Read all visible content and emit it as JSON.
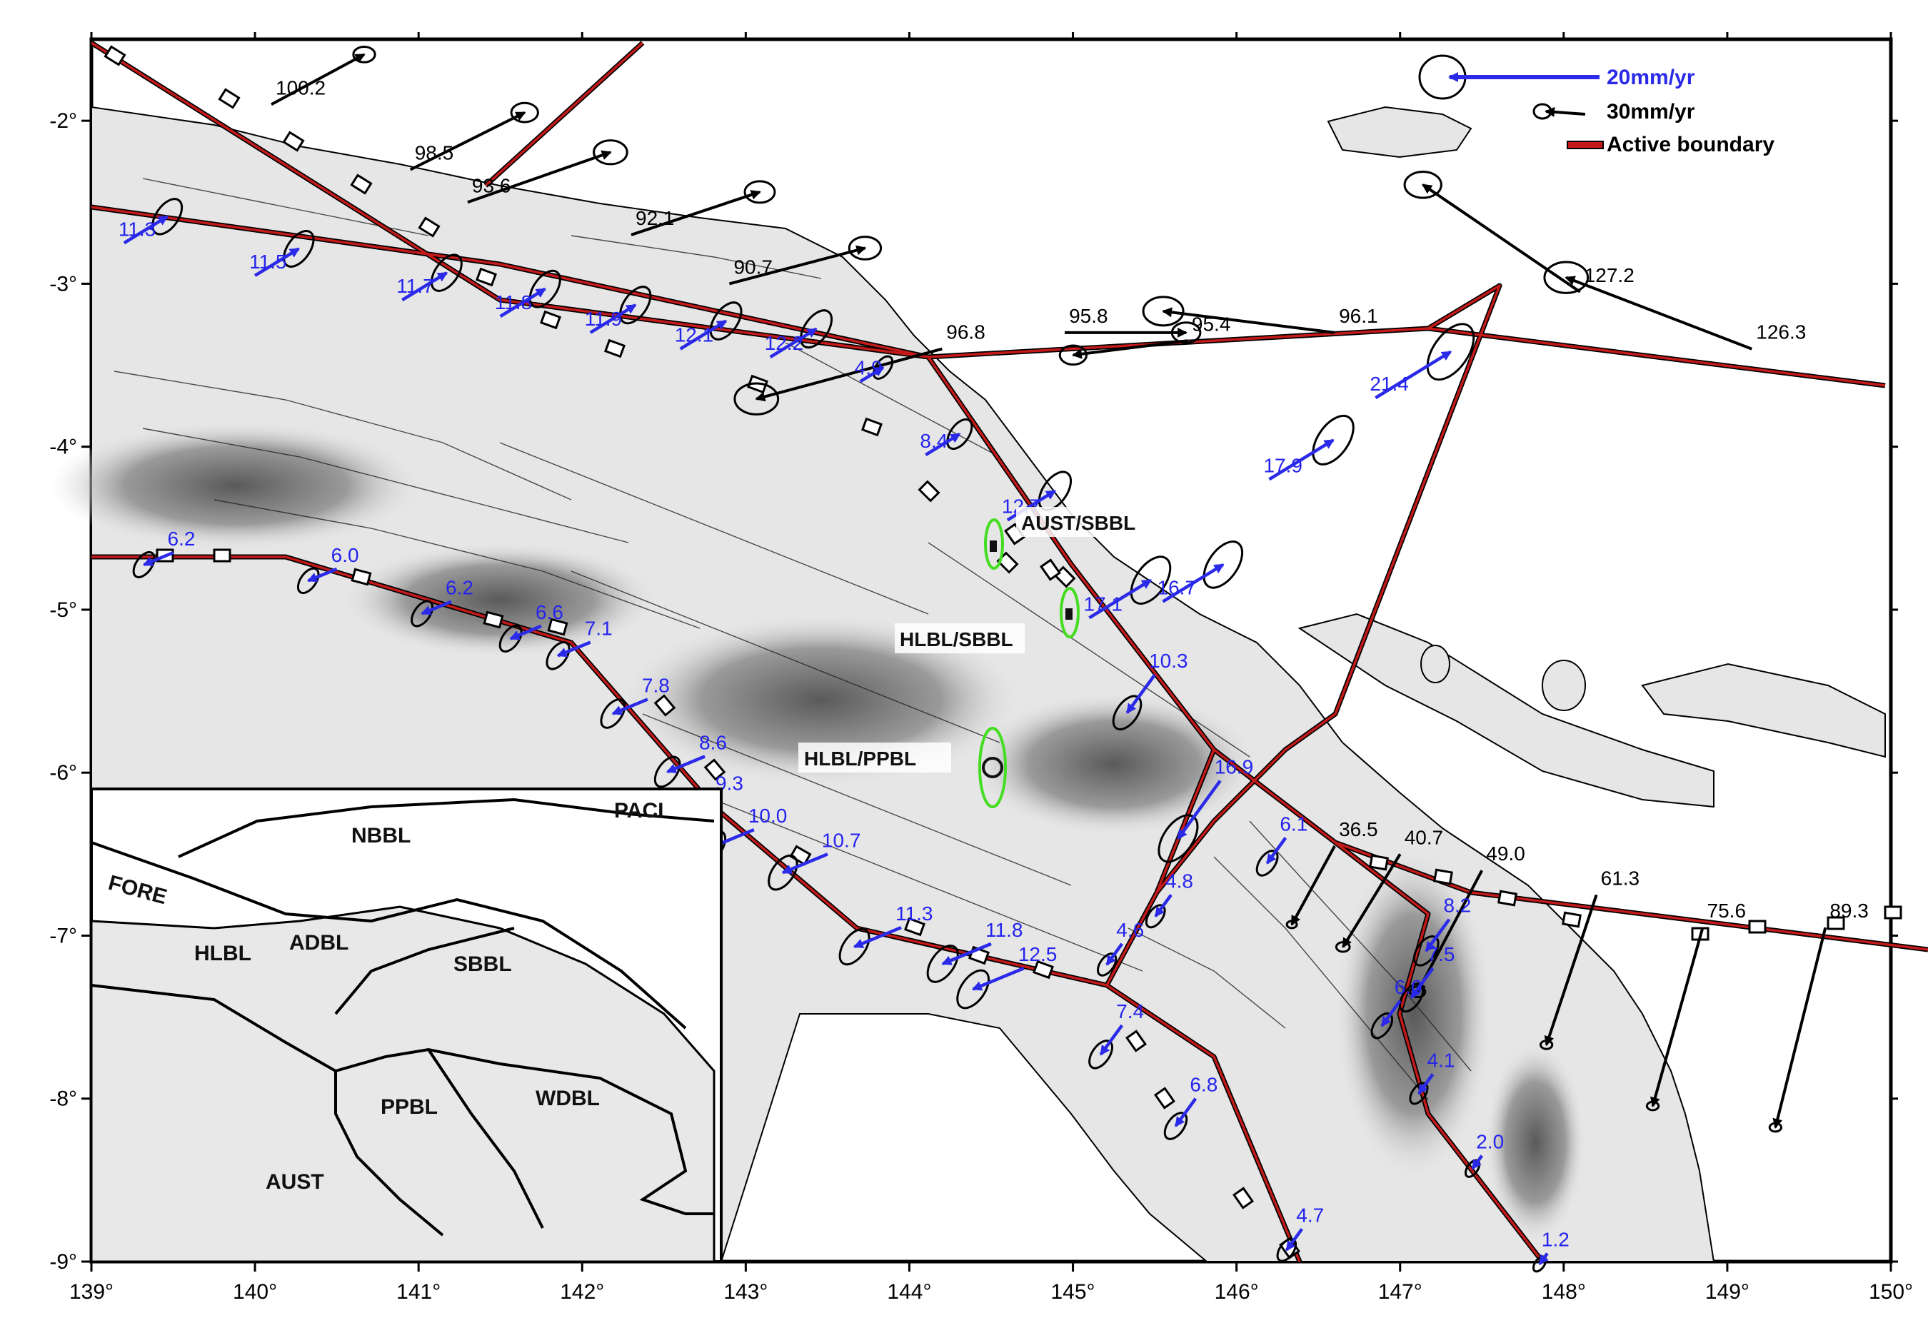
{
  "axes": {
    "lon_ticks": [
      "139°",
      "140°",
      "141°",
      "142°",
      "143°",
      "144°",
      "145°",
      "146°",
      "147°",
      "148°",
      "149°",
      "150°"
    ],
    "lat_ticks": [
      "-2°",
      "-3°",
      "-4°",
      "-5°",
      "-6°",
      "-7°",
      "-8°",
      "-9°"
    ],
    "lon_range": [
      139,
      150
    ],
    "lat_range": [
      -9,
      -1.5
    ]
  },
  "legend": {
    "blue_scale": "20mm/yr",
    "black_scale": "30mm/yr",
    "boundary": "Active boundary",
    "blue_color": "#2a2ae8",
    "black_color": "#000000",
    "boundary_color": "#cc1111"
  },
  "colors": {
    "blue_vector": "#2a2ae8",
    "black_vector": "#000000",
    "boundary": "#c41a1a",
    "green_ellipse": "#44dd22",
    "land": "#e8e8e8",
    "highland": "#8a8a8a"
  },
  "map_labels": {
    "aust_sbbl": "AUST/SBBL",
    "hlbl_sbbl": "HLBL/SBBL",
    "hlbl_ppbl": "HLBL/PPBL"
  },
  "inset_labels": {
    "nbbl": "NBBL",
    "paci": "PACI",
    "fore": "FORE",
    "hlbl": "HLBL",
    "adbl": "ADBL",
    "sbbl": "SBBL",
    "ppbl": "PPBL",
    "wdbl": "WDBL",
    "aust": "AUST"
  },
  "black_vectors": [
    {
      "label": "100.2",
      "lon": 140.1,
      "lat": -1.9
    },
    {
      "label": "98.5",
      "lon": 140.95,
      "lat": -2.3
    },
    {
      "label": "93.6",
      "lon": 141.3,
      "lat": -2.5
    },
    {
      "label": "92.1",
      "lon": 142.3,
      "lat": -2.7
    },
    {
      "label": "90.7",
      "lon": 142.9,
      "lat": -3.0
    },
    {
      "label": "96.8",
      "lon": 144.2,
      "lat": -3.4
    },
    {
      "label": "95.8",
      "lon": 144.95,
      "lat": -3.3
    },
    {
      "label": "95.4",
      "lon": 145.7,
      "lat": -3.35
    },
    {
      "label": "96.1",
      "lon": 146.6,
      "lat": -3.3
    },
    {
      "label": "127.2",
      "lon": 148.1,
      "lat": -3.05
    },
    {
      "label": "126.3",
      "lon": 149.15,
      "lat": -3.4
    },
    {
      "label": "36.5",
      "lon": 146.6,
      "lat": -6.45
    },
    {
      "label": "40.7",
      "lon": 147.0,
      "lat": -6.5
    },
    {
      "label": "49.0",
      "lon": 147.5,
      "lat": -6.6
    },
    {
      "label": "61.3",
      "lon": 148.2,
      "lat": -6.75
    },
    {
      "label": "75.6",
      "lon": 148.85,
      "lat": -6.95
    },
    {
      "label": "89.3",
      "lon": 149.6,
      "lat": -6.95
    }
  ],
  "blue_vectors": [
    {
      "label": "11.3",
      "lon": 139.2,
      "lat": -2.75
    },
    {
      "label": "11.5",
      "lon": 140.0,
      "lat": -2.95
    },
    {
      "label": "11.7",
      "lon": 140.9,
      "lat": -3.1
    },
    {
      "label": "11.8",
      "lon": 141.5,
      "lat": -3.2
    },
    {
      "label": "11.9",
      "lon": 142.05,
      "lat": -3.3
    },
    {
      "label": "12.1",
      "lon": 142.6,
      "lat": -3.4
    },
    {
      "label": "12.2",
      "lon": 143.15,
      "lat": -3.45
    },
    {
      "label": "4.9",
      "lon": 143.7,
      "lat": -3.6
    },
    {
      "label": "8.4",
      "lon": 144.1,
      "lat": -4.05
    },
    {
      "label": "12.7",
      "lon": 144.6,
      "lat": -4.45
    },
    {
      "label": "17.1",
      "lon": 145.1,
      "lat": -5.05
    },
    {
      "label": "16.7",
      "lon": 145.55,
      "lat": -4.95
    },
    {
      "label": "17.9",
      "lon": 146.2,
      "lat": -4.2
    },
    {
      "label": "21.4",
      "lon": 146.85,
      "lat": -3.7
    },
    {
      "label": "6.2",
      "lon": 139.5,
      "lat": -4.65
    },
    {
      "label": "6.0",
      "lon": 140.5,
      "lat": -4.75
    },
    {
      "label": "6.2",
      "lon": 141.2,
      "lat": -4.95
    },
    {
      "label": "6.6",
      "lon": 141.75,
      "lat": -5.1
    },
    {
      "label": "7.1",
      "lon": 142.05,
      "lat": -5.2
    },
    {
      "label": "7.8",
      "lon": 142.4,
      "lat": -5.55
    },
    {
      "label": "8.6",
      "lon": 142.75,
      "lat": -5.9
    },
    {
      "label": "9.3",
      "lon": 142.85,
      "lat": -6.15
    },
    {
      "label": "10.0",
      "lon": 143.05,
      "lat": -6.35
    },
    {
      "label": "10.7",
      "lon": 143.5,
      "lat": -6.5
    },
    {
      "label": "11.3",
      "lon": 143.95,
      "lat": -6.95
    },
    {
      "label": "11.8",
      "lon": 144.5,
      "lat": -7.05
    },
    {
      "label": "12.5",
      "lon": 144.7,
      "lat": -7.2
    },
    {
      "label": "10.3",
      "lon": 145.5,
      "lat": -5.4
    },
    {
      "label": "16.9",
      "lon": 145.9,
      "lat": -6.05
    },
    {
      "label": "6.1",
      "lon": 146.3,
      "lat": -6.4
    },
    {
      "label": "4.8",
      "lon": 145.6,
      "lat": -6.75
    },
    {
      "label": "4.6",
      "lon": 145.3,
      "lat": -7.05
    },
    {
      "label": "7.4",
      "lon": 145.3,
      "lat": -7.55
    },
    {
      "label": "6.8",
      "lon": 145.75,
      "lat": -8.0
    },
    {
      "label": "8.2",
      "lon": 147.3,
      "lat": -6.9
    },
    {
      "label": "7.5",
      "lon": 147.2,
      "lat": -7.2
    },
    {
      "label": "6.0",
      "lon": 147.0,
      "lat": -7.4
    },
    {
      "label": "4.1",
      "lon": 147.2,
      "lat": -7.85
    },
    {
      "label": "2.0",
      "lon": 147.5,
      "lat": -8.35
    },
    {
      "label": "4.7",
      "lon": 146.4,
      "lat": -8.8
    },
    {
      "label": "1.2",
      "lon": 147.9,
      "lat": -8.95
    }
  ]
}
